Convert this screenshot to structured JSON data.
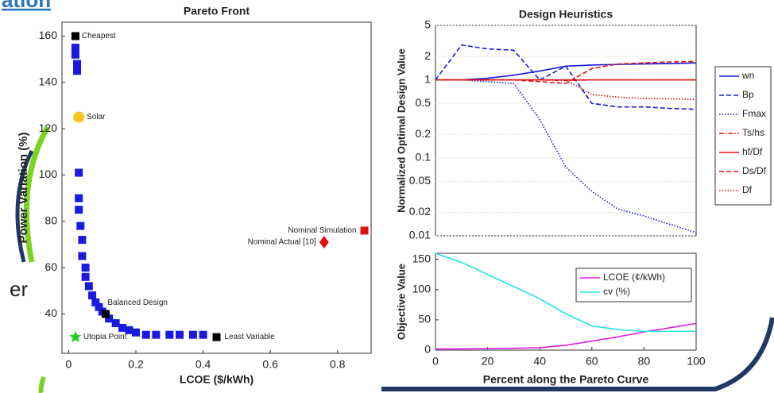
{
  "slide": {
    "title_fragment": "ation",
    "body_fragment": "er"
  },
  "chart_data": [
    {
      "type": "scatter",
      "title": "Pareto Front",
      "x_label": "LCOE ($/kWh)",
      "y_label": "Power Variation (%)",
      "xlim": [
        -0.02,
        0.9
      ],
      "ylim": [
        23,
        166
      ],
      "xticks": [
        0,
        0.2,
        0.4,
        0.6,
        0.8
      ],
      "yticks": [
        40,
        60,
        80,
        100,
        120,
        140,
        160
      ],
      "series": [
        {
          "color": "#1a1adf",
          "x": [
            0.02,
            0.02,
            0.025,
            0.025,
            0.03,
            0.03,
            0.03,
            0.035,
            0.04,
            0.04,
            0.05,
            0.05,
            0.06,
            0.07,
            0.08,
            0.09,
            0.1,
            0.12,
            0.14,
            0.16,
            0.18,
            0.2,
            0.23,
            0.26,
            0.3,
            0.33,
            0.37,
            0.4
          ],
          "values": [
            155,
            152,
            148,
            145,
            101,
            90,
            85,
            78,
            72,
            65,
            60,
            56,
            52,
            48,
            45,
            43,
            41,
            38,
            36,
            34,
            33,
            32,
            31,
            31,
            31,
            31,
            31,
            31
          ]
        }
      ],
      "annotations": [
        {
          "text": "Cheapest",
          "x": 0.02,
          "y": 160,
          "marker": "square",
          "color": "#000000"
        },
        {
          "text": "Solar",
          "x": 0.03,
          "y": 125,
          "marker": "circle",
          "color": "#f2c61f"
        },
        {
          "text": "Utopia Point",
          "x": 0.02,
          "y": 30,
          "marker": "star",
          "color": "#22cc22"
        },
        {
          "text": "Balanced Design",
          "x": 0.11,
          "y": 40,
          "marker": "square",
          "color": "#000000"
        },
        {
          "text": "Least Variable",
          "x": 0.44,
          "y": 30,
          "marker": "square",
          "color": "#000000"
        },
        {
          "text": "Nominal Actual [10]",
          "x": 0.76,
          "y": 71,
          "marker": "diamond",
          "color": "#e01010"
        },
        {
          "text": "Nominal Simulation",
          "x": 0.88,
          "y": 76,
          "marker": "square",
          "color": "#e01010"
        }
      ]
    },
    {
      "type": "line",
      "title": "Design Heuristics",
      "y_label": "Normalized Optimal Design Value",
      "log_y": true,
      "grid": true,
      "xlim": [
        0,
        100
      ],
      "ylim": [
        0.01,
        5
      ],
      "yticks": [
        0.01,
        0.02,
        0.05,
        0.1,
        0.2,
        0.5,
        1,
        2,
        5
      ],
      "x": [
        0,
        10,
        20,
        30,
        40,
        50,
        60,
        70,
        80,
        90,
        100
      ],
      "series": [
        {
          "name": "wn",
          "color": "#1a1adf",
          "style": "solid",
          "values": [
            1,
            1,
            1.05,
            1.15,
            1.3,
            1.5,
            1.55,
            1.58,
            1.6,
            1.62,
            1.65
          ]
        },
        {
          "name": "Bp",
          "color": "#1a1adf",
          "style": "dashed",
          "values": [
            1,
            2.8,
            2.5,
            2.4,
            1,
            1.5,
            0.5,
            0.45,
            0.45,
            0.43,
            0.42
          ]
        },
        {
          "name": "Fmax",
          "color": "#1a1adf",
          "style": "dotted",
          "values": [
            1,
            1,
            0.95,
            0.9,
            0.31,
            0.076,
            0.037,
            0.022,
            0.018,
            0.014,
            0.011
          ]
        },
        {
          "name": "Ts/hs",
          "color": "#e01010",
          "style": "dashdot",
          "values": [
            1,
            1,
            1,
            1,
            1,
            0.98,
            1,
            1,
            1,
            1,
            1
          ]
        },
        {
          "name": "hf/Df",
          "color": "#e01010",
          "style": "solid",
          "values": [
            1,
            1,
            1,
            1,
            1,
            1,
            1,
            1,
            1,
            1,
            1
          ]
        },
        {
          "name": "Ds/Df",
          "color": "#e01010",
          "style": "dashed",
          "values": [
            1,
            1,
            1,
            1,
            0.95,
            0.9,
            1.4,
            1.6,
            1.65,
            1.7,
            1.72
          ]
        },
        {
          "name": "Df",
          "color": "#e01010",
          "style": "dotted",
          "values": [
            1,
            1,
            1,
            1,
            1,
            1,
            0.65,
            0.6,
            0.58,
            0.57,
            0.56
          ]
        }
      ]
    },
    {
      "type": "line",
      "x_label": "Percent along the Pareto Curve",
      "y_label": "Objective Value",
      "xlim": [
        0,
        100
      ],
      "ylim": [
        0,
        160
      ],
      "xticks": [
        0,
        20,
        40,
        60,
        80,
        100
      ],
      "yticks": [
        0,
        50,
        100,
        150
      ],
      "x": [
        0,
        10,
        20,
        30,
        40,
        50,
        60,
        70,
        80,
        90,
        100
      ],
      "series": [
        {
          "name": "LCOE (¢/kWh)",
          "color": "#e020e0",
          "style": "solid",
          "values": [
            2,
            2,
            2.5,
            3,
            4,
            8,
            15,
            22,
            30,
            37,
            44
          ]
        },
        {
          "name": "cv (%)",
          "color": "#20e0e0",
          "style": "solid",
          "values": [
            160,
            145,
            125,
            105,
            85,
            60,
            40,
            34,
            31,
            31,
            31
          ]
        }
      ]
    }
  ]
}
